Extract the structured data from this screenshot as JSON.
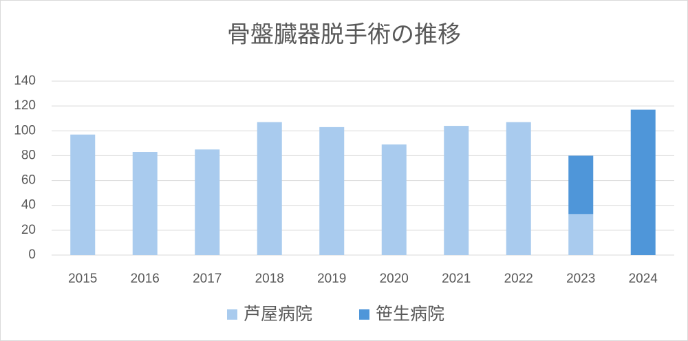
{
  "chart_data": {
    "type": "stacked_bar",
    "title": "骨盤臓器脱手術の推移",
    "categories": [
      "2015",
      "2016",
      "2017",
      "2018",
      "2019",
      "2020",
      "2021",
      "2022",
      "2023",
      "2024"
    ],
    "series": [
      {
        "name": "芦屋病院",
        "color": "#a9cbee",
        "values": [
          97,
          83,
          85,
          107,
          103,
          89,
          104,
          107,
          33,
          0
        ]
      },
      {
        "name": "笹生病院",
        "color": "#4f96d9",
        "values": [
          0,
          0,
          0,
          0,
          0,
          0,
          0,
          0,
          47,
          117
        ]
      }
    ],
    "ylim": [
      0,
      140
    ],
    "yticks": [
      0,
      20,
      40,
      60,
      80,
      100,
      120,
      140
    ],
    "grid": true,
    "legend": "bottom"
  }
}
